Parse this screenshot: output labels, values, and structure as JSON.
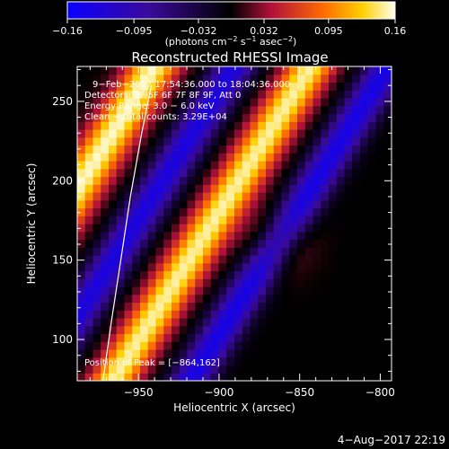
{
  "chart_data": {
    "type": "heatmap",
    "title": "Reconstructed RHESSI Image",
    "xlabel": "Heliocentric X (arcsec)",
    "ylabel": "Heliocentric Y (arcsec)",
    "xlim": [
      -988,
      -793
    ],
    "ylim": [
      74,
      272
    ],
    "x_ticks": [
      -950,
      -900,
      -850,
      -800
    ],
    "x_tick_labels": [
      "−950",
      "−900",
      "−850",
      "−800"
    ],
    "y_ticks": [
      100,
      150,
      200,
      250
    ],
    "y_tick_labels": [
      "100",
      "150",
      "200",
      "250"
    ],
    "colorbar": {
      "range": [
        -0.16,
        0.16
      ],
      "ticks": [
        -0.16,
        -0.095,
        -0.032,
        0.032,
        0.095,
        0.16
      ],
      "tick_labels": [
        "−0.16",
        "−0.095",
        "−0.032",
        "0.032",
        "0.095",
        "0.16"
      ],
      "unit_label": "(photons cm",
      "unit_exp1": "−2",
      "unit_mid": " s",
      "unit_exp2": "−1",
      "unit_end": " asec",
      "unit_exp3": "−2",
      "unit_close": ")"
    },
    "annotations": {
      "time_range": "9−Feb−2017 17:54:36.000 to 18:04:36.000",
      "detectors": "Detectors: 3F 5F 6F 7F 8F 9F, Att 0",
      "energy": "Energy Range: 3.0 − 6.0 keV",
      "clean": "Clean − total counts: 3.29E+04",
      "peak": "Position of Peak = [−864,162]"
    },
    "peak": [
      -864,
      162
    ],
    "limb_curve": [
      [
        -972,
        74
      ],
      [
        -967,
        110
      ],
      [
        -961,
        150
      ],
      [
        -955,
        190
      ],
      [
        -948,
        230
      ],
      [
        -942,
        260
      ]
    ],
    "bands": [
      {
        "x0": -985,
        "y0": 200,
        "slope": 0.62,
        "width": 16,
        "amp": 0.155
      },
      {
        "x0": -935,
        "y0": 200,
        "slope": 0.62,
        "width": 13,
        "amp": -0.135
      },
      {
        "x0": -888,
        "y0": 200,
        "slope": 0.62,
        "width": 15,
        "amp": 0.15
      },
      {
        "x0": -840,
        "y0": 200,
        "slope": 0.62,
        "width": 13,
        "amp": -0.14
      }
    ]
  },
  "footer": {
    "timestamp": "4−Aug−2017 22:19"
  }
}
